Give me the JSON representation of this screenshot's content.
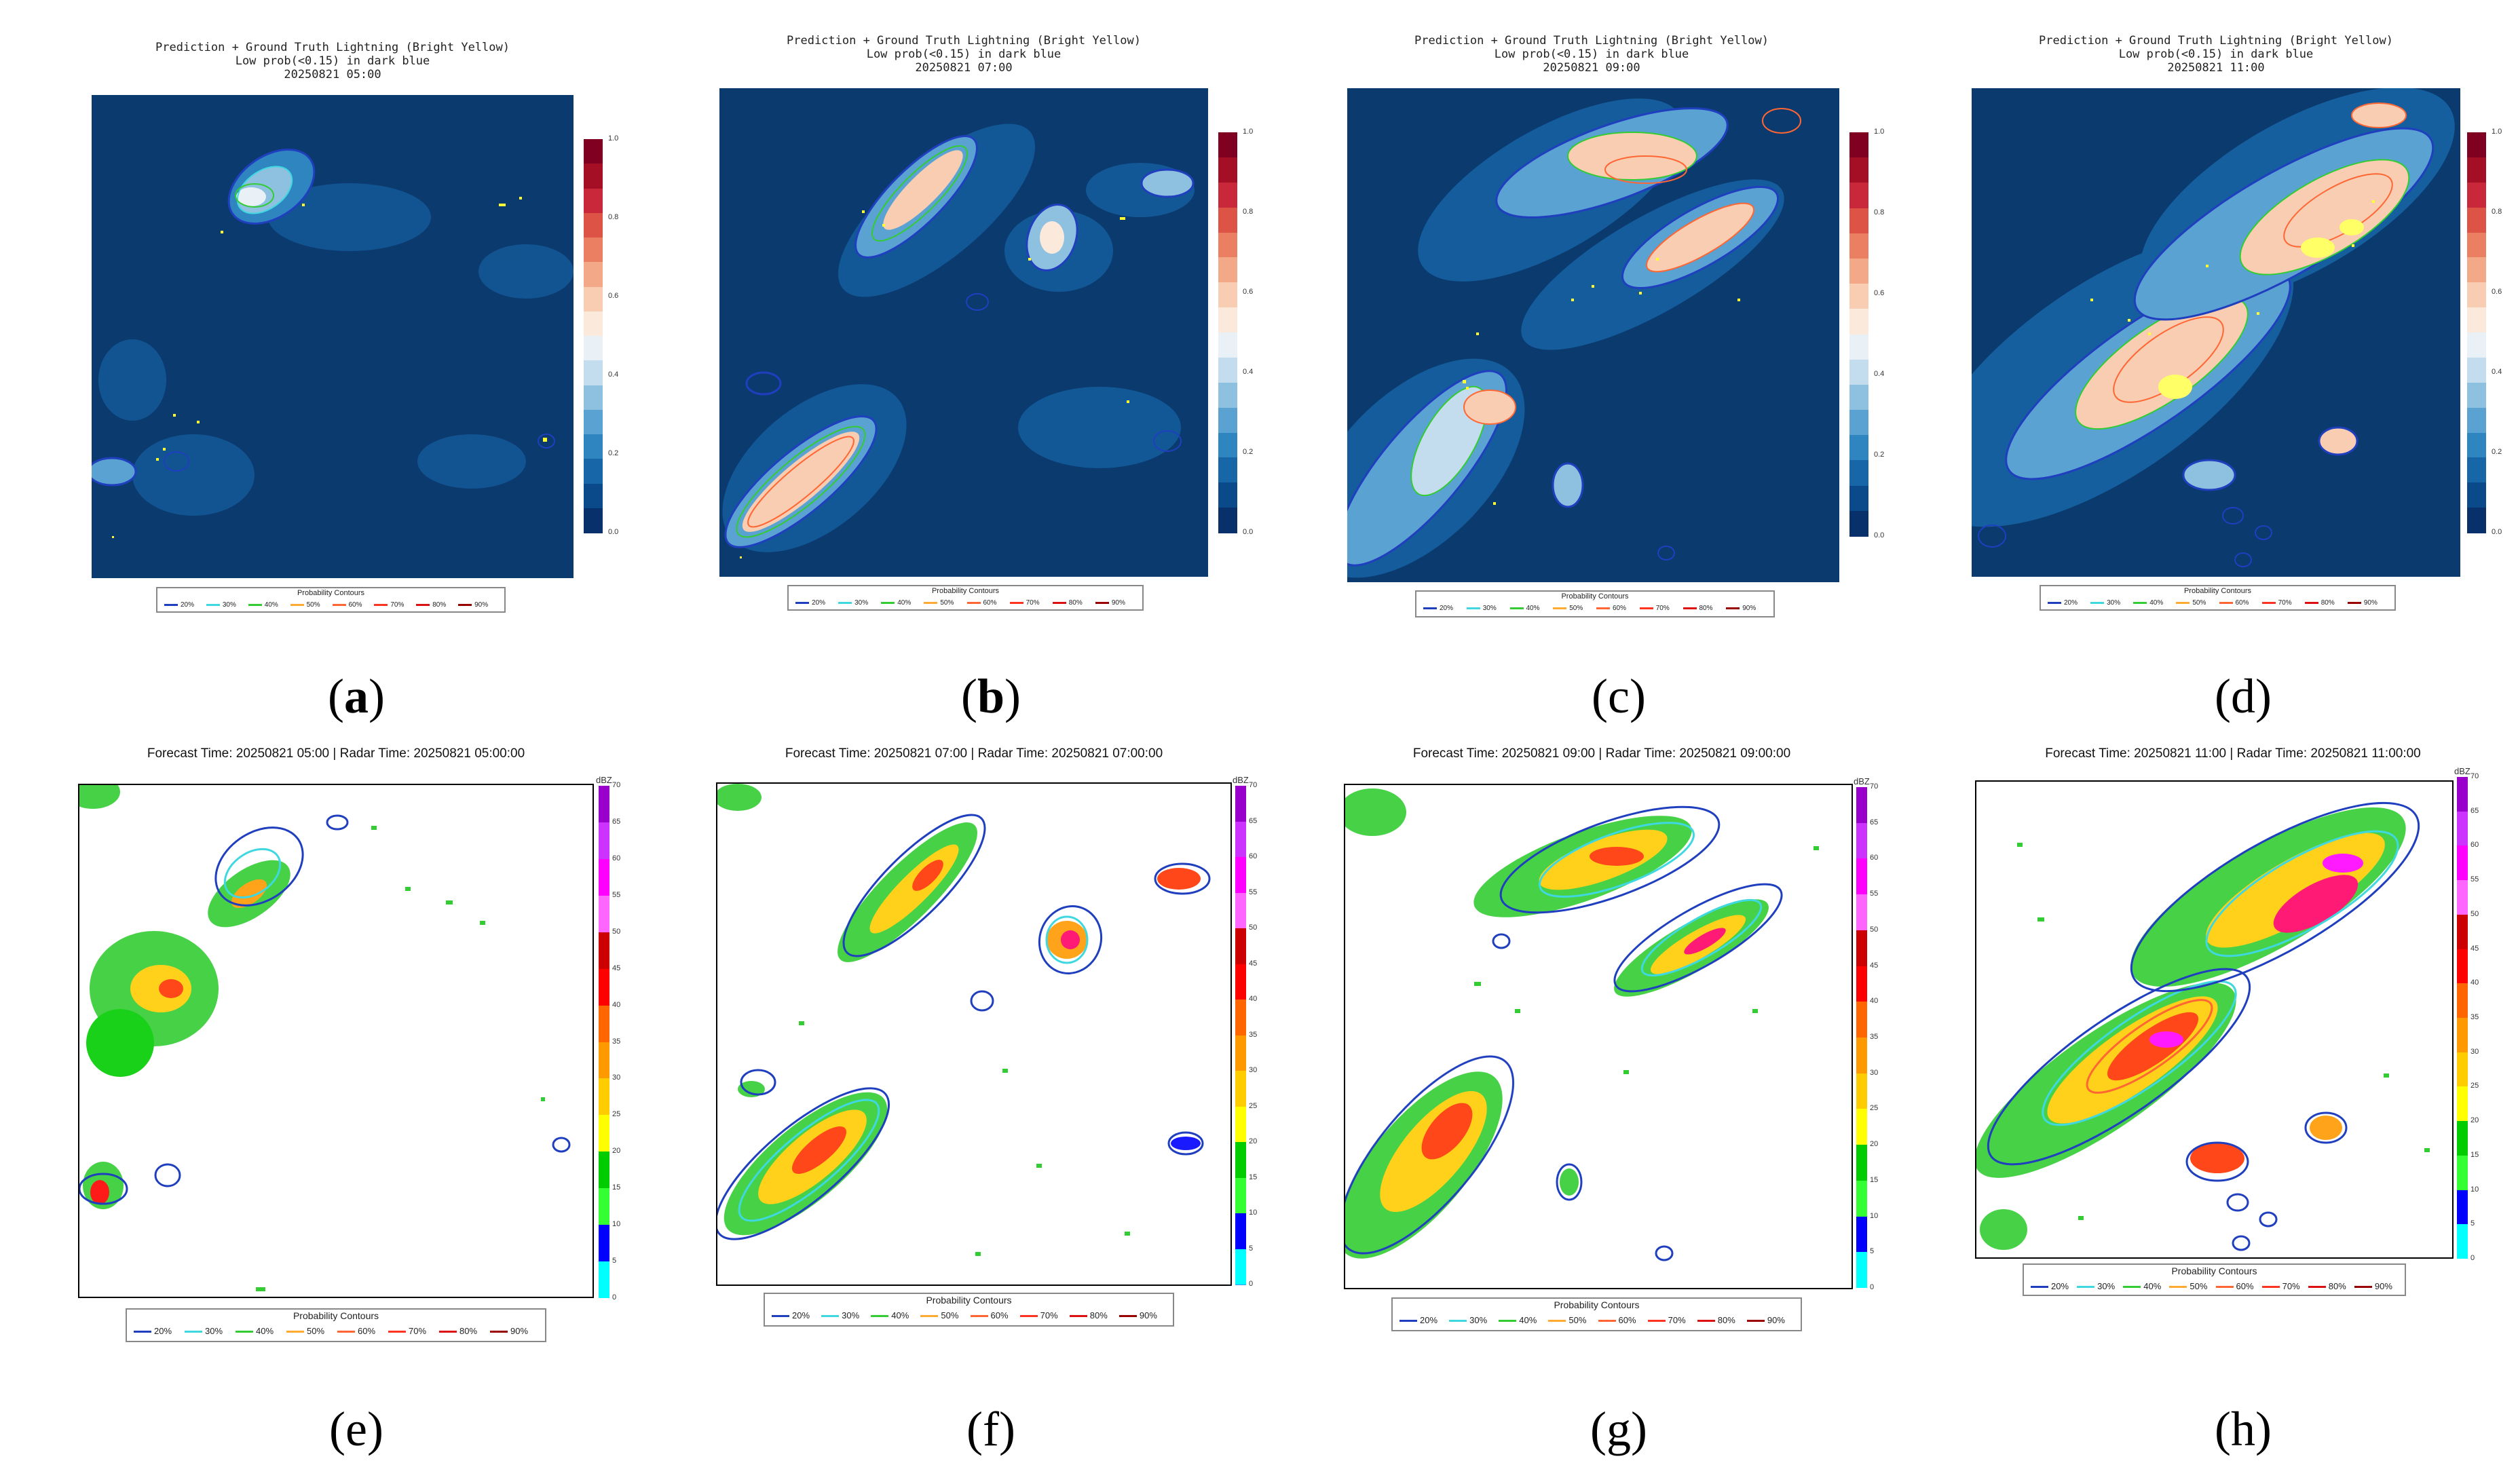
{
  "top_panels": [
    {
      "id": "a",
      "title1": "Prediction + Ground Truth Lightning (Bright Yellow)",
      "title2": "Low prob(<0.15) in dark blue",
      "title3": "20250821 05:00"
    },
    {
      "id": "b",
      "title1": "Prediction + Ground Truth Lightning (Bright Yellow)",
      "title2": "Low prob(<0.15) in dark blue",
      "title3": "20250821 07:00"
    },
    {
      "id": "c",
      "title1": "Prediction + Ground Truth Lightning (Bright Yellow)",
      "title2": "Low prob(<0.15) in dark blue",
      "title3": "20250821 09:00"
    },
    {
      "id": "d",
      "title1": "Prediction + Ground Truth Lightning (Bright Yellow)",
      "title2": "Low prob(<0.15) in dark blue",
      "title3": "20250821 11:00"
    }
  ],
  "bottom_panels": [
    {
      "id": "e",
      "title": "Forecast Time: 20250821 05:00  |  Radar Time: 20250821 05:00:00"
    },
    {
      "id": "f",
      "title": "Forecast Time: 20250821 07:00  |  Radar Time: 20250821 07:00:00"
    },
    {
      "id": "g",
      "title": "Forecast Time: 20250821 09:00  |  Radar Time: 20250821 09:00:00"
    },
    {
      "id": "h",
      "title": "Forecast Time: 20250821 11:00  |  Radar Time: 20250821 11:00:00"
    }
  ],
  "captions": {
    "a": {
      "open": "(",
      "letter": "a",
      "close": ")"
    },
    "b": {
      "open": "(",
      "letter": "b",
      "close": ")"
    },
    "c": {
      "open": "(",
      "letter": "c",
      "close": ")"
    },
    "d": {
      "open": "(",
      "letter": "d",
      "close": ")"
    },
    "e": "(e)",
    "f": "(f)",
    "g": "(g)",
    "h": "(h)"
  },
  "prob_colorbar": {
    "ticks": [
      "1.0",
      "0.8",
      "0.6",
      "0.4",
      "0.2",
      "0.0"
    ],
    "colors": [
      "#08306b",
      "#0b4a8a",
      "#1766a8",
      "#2f85c0",
      "#5aa2d1",
      "#8ec0e0",
      "#c3dcee",
      "#eaf1f6",
      "#fbe9dc",
      "#f8cdb2",
      "#f3a987",
      "#ea7f62",
      "#dd5346",
      "#c8283a",
      "#a50f26",
      "#7f0020"
    ]
  },
  "radar_colorbar": {
    "unit": "dBZ",
    "ticks": [
      "70",
      "65",
      "60",
      "55",
      "50",
      "45",
      "40",
      "35",
      "30",
      "25",
      "20",
      "15",
      "10",
      "5",
      "0"
    ],
    "colors": [
      "#9900cc",
      "#cc33ff",
      "#ff00ff",
      "#ff66ff",
      "#cc0000",
      "#ff0000",
      "#ff6600",
      "#ff9900",
      "#ffcc00",
      "#ffff00",
      "#00cc00",
      "#33ff33",
      "#0000ff",
      "#3399ff",
      "#00ffff"
    ]
  },
  "legend": {
    "title": "Probability Contours",
    "items": [
      {
        "label": "20%",
        "color": "#1f3fbf"
      },
      {
        "label": "30%",
        "color": "#3fd8e0"
      },
      {
        "label": "40%",
        "color": "#33cc33"
      },
      {
        "label": "50%",
        "color": "#ffaa33"
      },
      {
        "label": "60%",
        "color": "#ff6633"
      },
      {
        "label": "70%",
        "color": "#ff3322"
      },
      {
        "label": "80%",
        "color": "#dd1111"
      },
      {
        "label": "90%",
        "color": "#990000"
      }
    ]
  },
  "colors": {
    "map_background": "#0b3a6e",
    "lightning": "#ffff33"
  }
}
